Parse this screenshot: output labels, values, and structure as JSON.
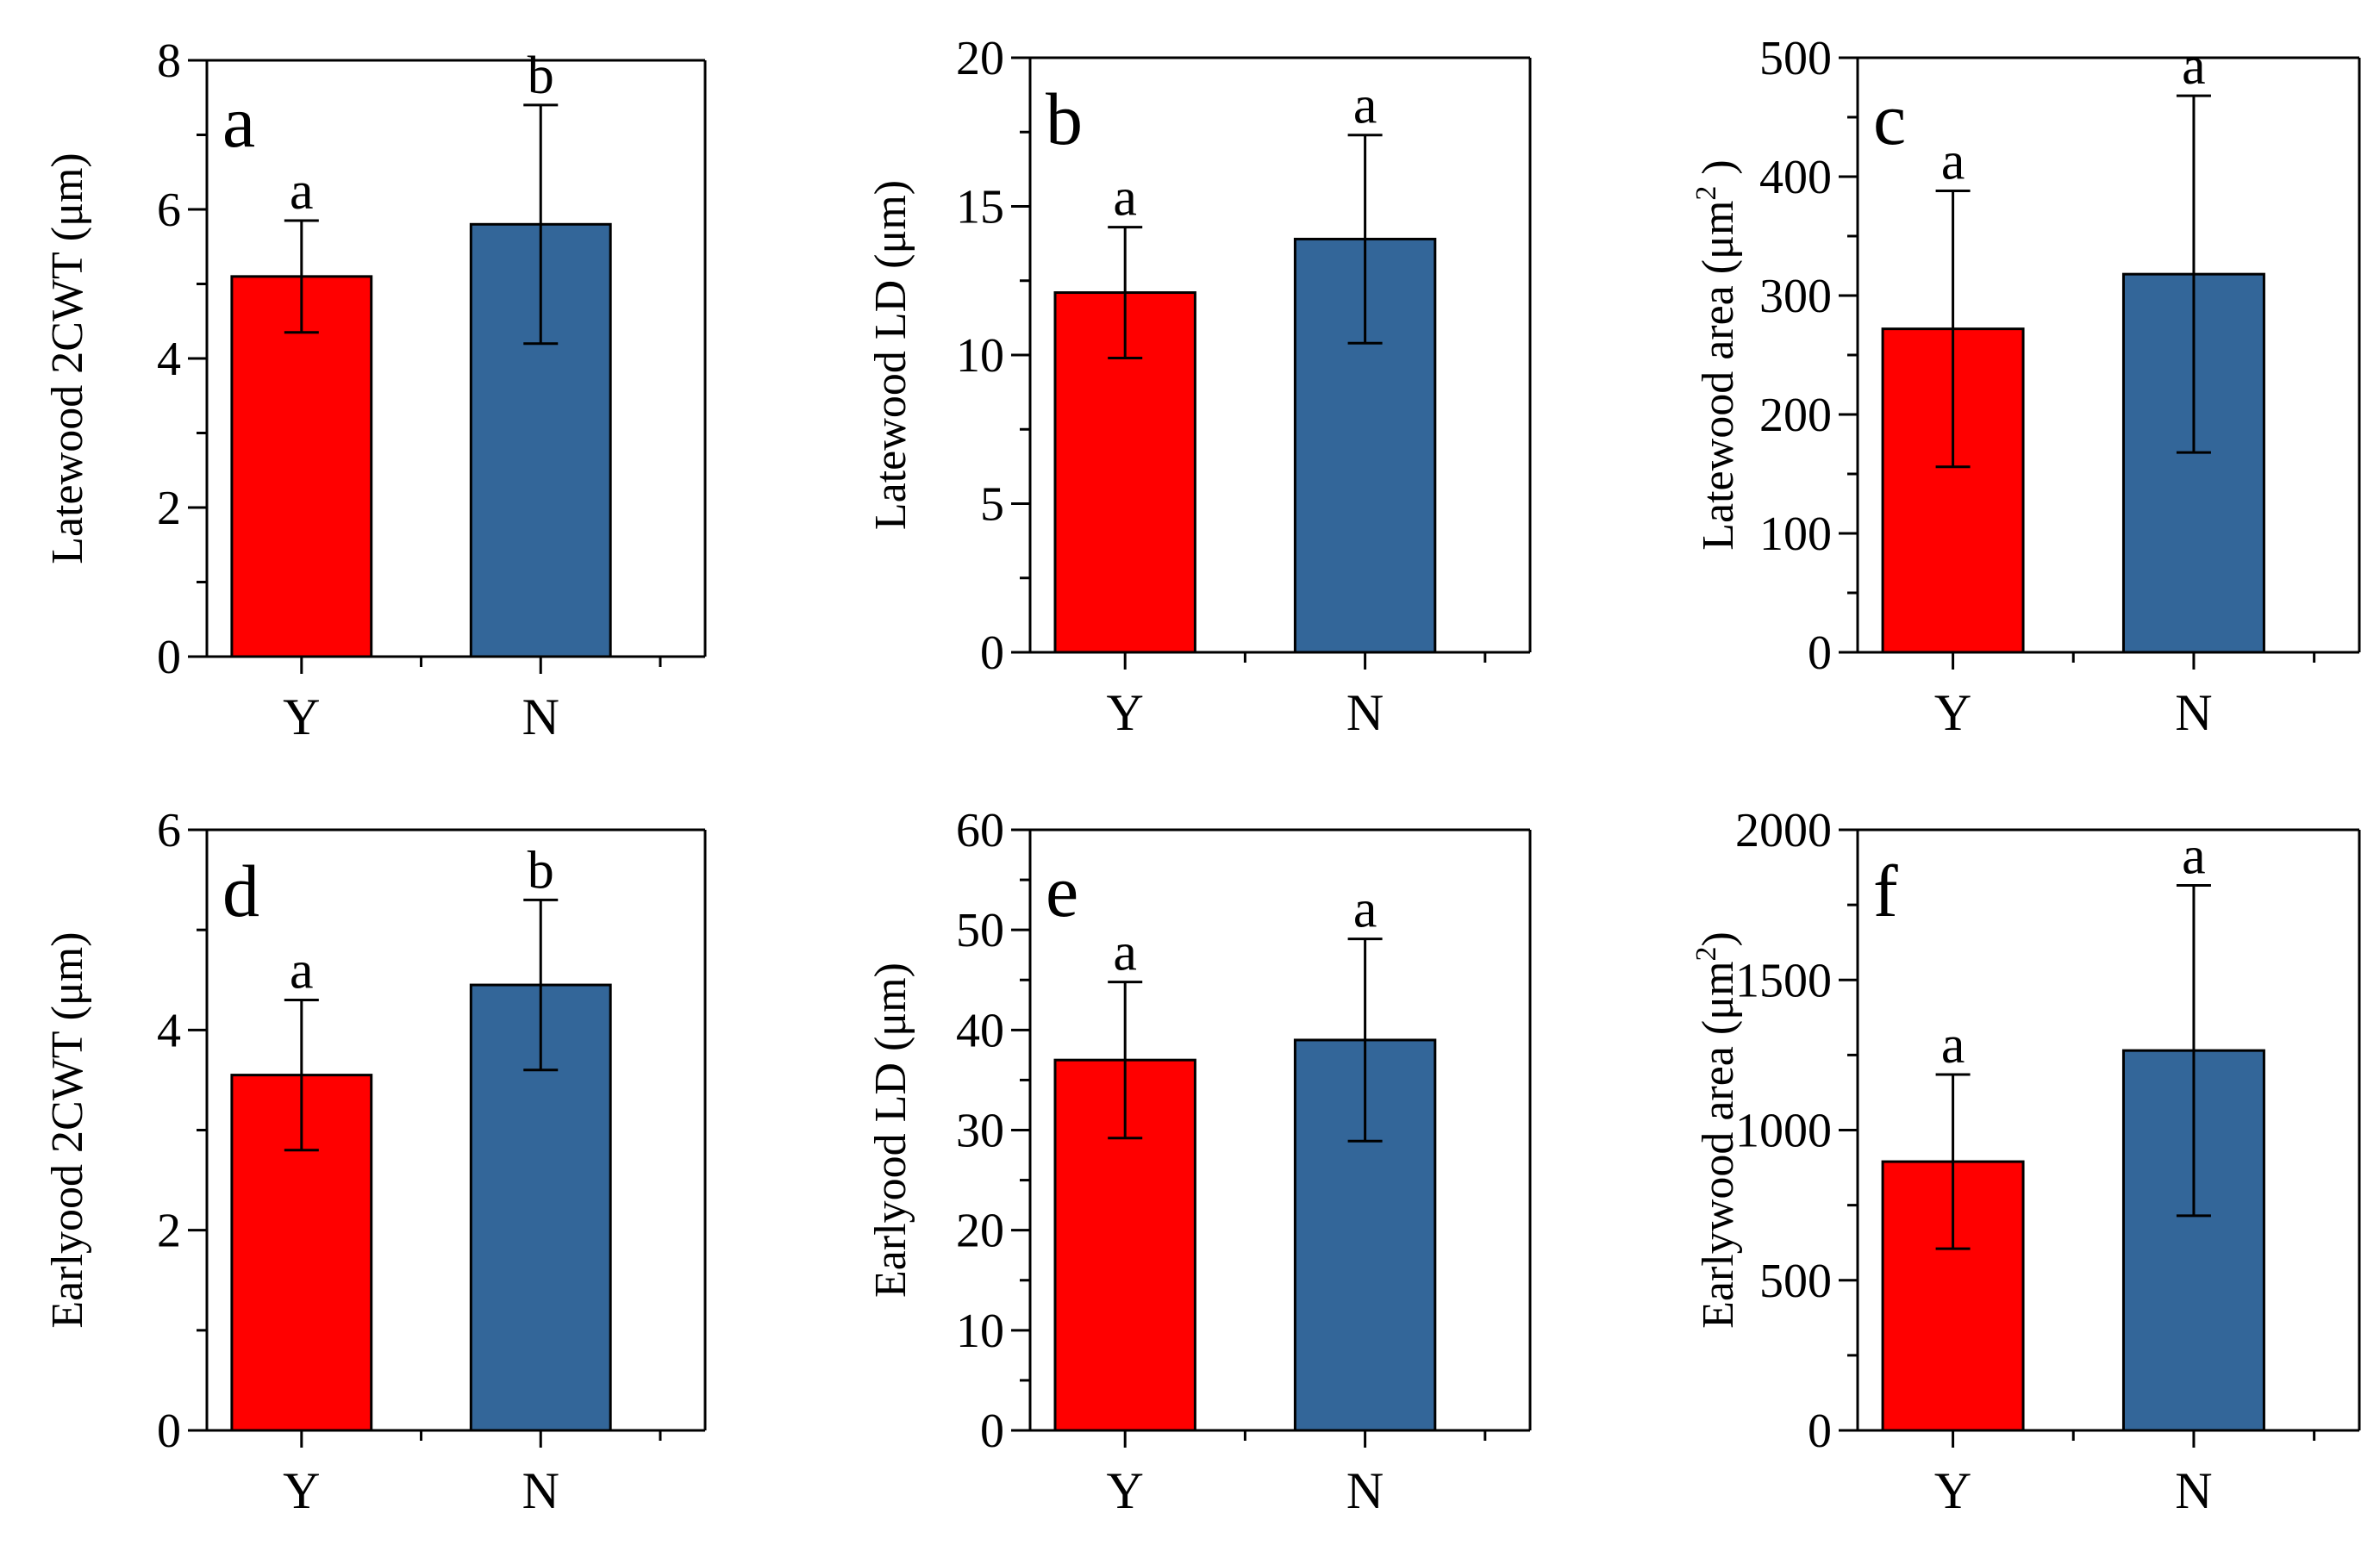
{
  "figure": {
    "colors": {
      "Y": "#ff0000",
      "N": "#336699",
      "axis": "#000000"
    }
  },
  "chart_data": [
    {
      "type": "bar",
      "panel": "a",
      "ylabel": "Latewood 2CWT (μm)",
      "ylabel_sup": "",
      "categories": [
        "Y",
        "N"
      ],
      "values": [
        5.1,
        5.8
      ],
      "errors": [
        0.75,
        1.6
      ],
      "significance": [
        "a",
        "b"
      ],
      "ylim": [
        0,
        8
      ],
      "yticks": [
        0,
        2,
        4,
        6,
        8
      ],
      "yticklabels": [
        "0",
        "2",
        "4",
        "6",
        "8"
      ],
      "minor_per_major": 2
    },
    {
      "type": "bar",
      "panel": "b",
      "ylabel": "Latewood LD (μm)",
      "ylabel_sup": "",
      "categories": [
        "Y",
        "N"
      ],
      "values": [
        12.1,
        13.9
      ],
      "errors": [
        2.2,
        3.5
      ],
      "significance": [
        "a",
        "a"
      ],
      "ylim": [
        0,
        20
      ],
      "yticks": [
        0,
        5,
        10,
        15,
        20
      ],
      "yticklabels": [
        "0",
        "5",
        "10",
        "15",
        "20"
      ],
      "minor_per_major": 2
    },
    {
      "type": "bar",
      "panel": "c",
      "ylabel": "Latewood area (μm",
      "ylabel_sup": "2",
      "ylabel_end": " )",
      "categories": [
        "Y",
        "N"
      ],
      "values": [
        272,
        318
      ],
      "errors": [
        116,
        150
      ],
      "significance": [
        "a",
        "a"
      ],
      "ylim": [
        0,
        500
      ],
      "yticks": [
        0,
        100,
        200,
        300,
        400,
        500
      ],
      "yticklabels": [
        "0",
        "100",
        "200",
        "300",
        "400",
        "500"
      ],
      "minor_per_major": 2
    },
    {
      "type": "bar",
      "panel": "d",
      "ylabel": "Earlyood 2CWT (μm)",
      "ylabel_sup": "",
      "categories": [
        "Y",
        "N"
      ],
      "values": [
        3.55,
        4.45
      ],
      "errors": [
        0.75,
        0.85
      ],
      "significance": [
        "a",
        "b"
      ],
      "ylim": [
        0,
        6
      ],
      "yticks": [
        0,
        2,
        4,
        6
      ],
      "yticklabels": [
        "0",
        "2",
        "4",
        "6"
      ],
      "minor_per_major": 2
    },
    {
      "type": "bar",
      "panel": "e",
      "ylabel": "Earlyood LD (μm)",
      "ylabel_sup": "",
      "categories": [
        "Y",
        "N"
      ],
      "values": [
        37,
        39
      ],
      "errors": [
        7.8,
        10.1
      ],
      "significance": [
        "a",
        "a"
      ],
      "ylim": [
        0,
        60
      ],
      "yticks": [
        0,
        10,
        20,
        30,
        40,
        50,
        60
      ],
      "yticklabels": [
        "0",
        "10",
        "20",
        "30",
        "40",
        "50",
        "60"
      ],
      "minor_per_major": 2
    },
    {
      "type": "bar",
      "panel": "f",
      "ylabel": "Earlywood area (μm",
      "ylabel_sup": "2",
      "ylabel_end": ")",
      "categories": [
        "Y",
        "N"
      ],
      "values": [
        895,
        1265
      ],
      "errors": [
        290,
        550
      ],
      "significance": [
        "a",
        "a"
      ],
      "ylim": [
        0,
        2000
      ],
      "yticks": [
        0,
        500,
        1000,
        1500,
        2000
      ],
      "yticklabels": [
        "0",
        "500",
        "1000",
        "1500",
        "2000"
      ],
      "minor_per_major": 2
    }
  ]
}
